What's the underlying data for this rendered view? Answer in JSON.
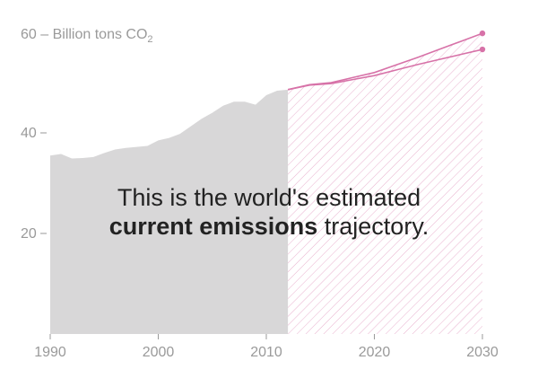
{
  "chart_data": {
    "type": "area",
    "unit_label_prefix": "60 – Billion tons CO",
    "unit_label_sub": "2",
    "ylim": [
      0,
      60
    ],
    "xlim": [
      1990,
      2030
    ],
    "y_ticks": [
      {
        "value": 60,
        "label": "60"
      },
      {
        "value": 40,
        "label": "40"
      },
      {
        "value": 20,
        "label": "20"
      }
    ],
    "x_ticks": [
      {
        "value": 1990,
        "label": "1990"
      },
      {
        "value": 2000,
        "label": "2000"
      },
      {
        "value": 2010,
        "label": "2010"
      },
      {
        "value": 2020,
        "label": "2020"
      },
      {
        "value": 2030,
        "label": "2030"
      }
    ],
    "historical": {
      "x": [
        1990,
        1991,
        1992,
        1993,
        1994,
        1995,
        1996,
        1997,
        1998,
        1999,
        2000,
        2001,
        2002,
        2003,
        2004,
        2005,
        2006,
        2007,
        2008,
        2009,
        2010,
        2011,
        2012
      ],
      "y": [
        35.5,
        35.8,
        34.9,
        35.0,
        35.2,
        36.0,
        36.7,
        37.0,
        37.2,
        37.4,
        38.5,
        39.0,
        39.8,
        41.3,
        42.8,
        44.0,
        45.4,
        46.2,
        46.2,
        45.6,
        47.5,
        48.4,
        48.6
      ]
    },
    "projections": [
      {
        "x": [
          2012,
          2014,
          2016,
          2018,
          2020,
          2022,
          2024,
          2026,
          2028,
          2030
        ],
        "y": [
          48.6,
          49.6,
          50.0,
          51.0,
          52.0,
          53.5,
          55.0,
          56.6,
          58.2,
          59.8
        ]
      },
      {
        "x": [
          2012,
          2014,
          2016,
          2018,
          2020,
          2022,
          2024,
          2026,
          2028,
          2030
        ],
        "y": [
          48.6,
          49.5,
          49.8,
          50.6,
          51.4,
          52.5,
          53.6,
          54.6,
          55.6,
          56.6
        ]
      }
    ],
    "colors": {
      "historical_fill": "#d8d7d8",
      "projection": "#d772a8",
      "axis": "#9a9a9a"
    }
  },
  "annotation": {
    "line1": "This is the world's estimated",
    "line2_bold": "current emissions",
    "line2_rest": " trajectory."
  }
}
